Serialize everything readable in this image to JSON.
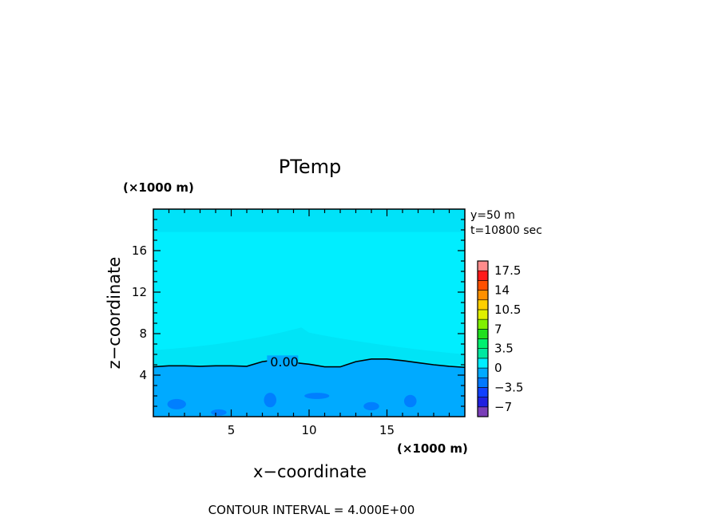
{
  "chart_data": {
    "type": "heatmap",
    "title": "PTemp",
    "xlabel": "x−coordinate",
    "ylabel": "z−coordinate",
    "x_unit": "(×1000 m)",
    "z_unit": "(×1000 m)",
    "xlim": [
      0,
      20
    ],
    "zlim": [
      0,
      20
    ],
    "x_ticks": [
      "5",
      "10",
      "15"
    ],
    "x_tick_values": [
      5,
      10,
      15
    ],
    "z_ticks": [
      "4",
      "8",
      "12",
      "16"
    ],
    "z_tick_values": [
      4,
      8,
      12,
      16
    ],
    "info_lines": [
      "y=50 m",
      "t=10800 sec"
    ],
    "contour_label": "0.00",
    "contour_interval": "CONTOUR INTERVAL = 4.000E+00",
    "colorbar": {
      "tick_labels": [
        "17.5",
        "14",
        "10.5",
        "7",
        "3.5",
        "0",
        "−3.5",
        "−7"
      ],
      "tick_values": [
        17.5,
        14,
        10.5,
        7,
        3.5,
        0,
        -3.5,
        -7
      ],
      "levels": [
        -8.75,
        -7,
        -5.25,
        -3.5,
        -1.75,
        0,
        1.75,
        3.5,
        5.25,
        7,
        8.75,
        10.5,
        12.25,
        14,
        15.75,
        17.5,
        19.25
      ],
      "colors": [
        "#7a3fb8",
        "#2020e0",
        "#1040ff",
        "#0078ff",
        "#00aaff",
        "#00eeff",
        "#00e8a0",
        "#00f070",
        "#20e020",
        "#80f000",
        "#e0f000",
        "#ffd000",
        "#ff9000",
        "#ff5000",
        "#ff1a1a",
        "#ff8c8c"
      ]
    },
    "zero_contour": {
      "x": [
        0,
        1,
        2,
        3,
        4,
        5,
        6,
        7,
        7.5,
        8.5,
        10,
        11,
        12,
        13,
        14,
        15,
        16,
        17,
        18,
        19,
        20
      ],
      "z": [
        4.8,
        4.9,
        4.9,
        4.85,
        4.9,
        4.9,
        4.85,
        5.3,
        5.4,
        5.3,
        5.05,
        4.8,
        4.8,
        5.3,
        5.55,
        5.55,
        5.4,
        5.2,
        5.0,
        4.85,
        4.75
      ]
    }
  }
}
